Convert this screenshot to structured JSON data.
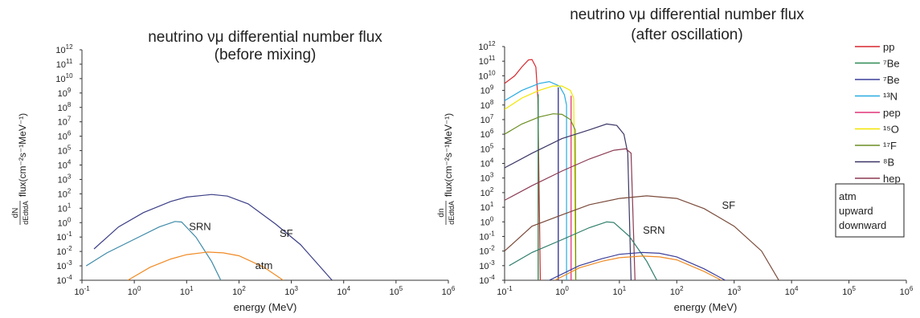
{
  "chart_data": [
    {
      "type": "line",
      "title_lines": [
        "neutrino νμ differential number flux",
        "(before mixing)"
      ],
      "xlabel": "energy (MeV)",
      "ylabel_frac_num": "dN",
      "ylabel_frac_den": "dEdtdA",
      "ylabel_unit": "flux(cm⁻²s⁻¹MeV⁻¹)",
      "x_scale": "log",
      "y_scale": "log",
      "xlim": [
        0.1,
        1000000
      ],
      "ylim": [
        0.0001,
        1000000000000
      ],
      "x_ticks": [
        {
          "v": 0.1,
          "base": "10",
          "exp": "-1"
        },
        {
          "v": 1,
          "base": "10",
          "exp": "0"
        },
        {
          "v": 10,
          "base": "10",
          "exp": "1"
        },
        {
          "v": 100,
          "base": "10",
          "exp": "2"
        },
        {
          "v": 1000,
          "base": "10",
          "exp": "3"
        },
        {
          "v": 10000,
          "base": "10",
          "exp": "4"
        },
        {
          "v": 100000,
          "base": "10",
          "exp": "5"
        },
        {
          "v": 1000000,
          "base": "10",
          "exp": "6"
        }
      ],
      "y_ticks": [
        {
          "v": 0.0001,
          "base": "10",
          "exp": "-4"
        },
        {
          "v": 0.001,
          "base": "10",
          "exp": "-3"
        },
        {
          "v": 0.01,
          "base": "10",
          "exp": "-2"
        },
        {
          "v": 0.1,
          "base": "10",
          "exp": "-1"
        },
        {
          "v": 1,
          "base": "10",
          "exp": "0"
        },
        {
          "v": 10,
          "base": "10",
          "exp": "1"
        },
        {
          "v": 100,
          "base": "10",
          "exp": "2"
        },
        {
          "v": 1000.0,
          "base": "10",
          "exp": "3"
        },
        {
          "v": 10000.0,
          "base": "10",
          "exp": "4"
        },
        {
          "v": 100000.0,
          "base": "10",
          "exp": "5"
        },
        {
          "v": 1000000.0,
          "base": "10",
          "exp": "6"
        },
        {
          "v": 10000000.0,
          "base": "10",
          "exp": "7"
        },
        {
          "v": 100000000.0,
          "base": "10",
          "exp": "8"
        },
        {
          "v": 1000000000.0,
          "base": "10",
          "exp": "9"
        },
        {
          "v": 10000000000.0,
          "base": "10",
          "exp": "10"
        },
        {
          "v": 100000000000.0,
          "base": "10",
          "exp": "11"
        },
        {
          "v": 1000000000000.0,
          "base": "10",
          "exp": "12"
        }
      ],
      "series": [
        {
          "name": "SF",
          "color": "#3b3e86",
          "points": [
            [
              0.17,
              0.015
            ],
            [
              0.5,
              0.5
            ],
            [
              1.5,
              5
            ],
            [
              5,
              30
            ],
            [
              10,
              60
            ],
            [
              30,
              90
            ],
            [
              60,
              70
            ],
            [
              150,
              20
            ],
            [
              500,
              0.8
            ],
            [
              1500,
              0.03
            ],
            [
              6000,
              0.0001
            ]
          ]
        },
        {
          "name": "SRN",
          "color": "#3e8aa8",
          "points": [
            [
              0.12,
              0.001
            ],
            [
              0.3,
              0.008
            ],
            [
              1,
              0.07
            ],
            [
              3,
              0.5
            ],
            [
              6,
              1.2
            ],
            [
              8,
              1.1
            ],
            [
              15,
              0.1
            ],
            [
              30,
              0.002
            ],
            [
              45,
              0.0001
            ]
          ]
        },
        {
          "name": "",
          "color": "#f08a24",
          "points": [
            [
              0.75,
              0.0001
            ],
            [
              2,
              0.0008
            ],
            [
              5,
              0.003
            ],
            [
              10,
              0.006
            ],
            [
              25,
              0.009
            ],
            [
              50,
              0.008
            ],
            [
              100,
              0.005
            ],
            [
              300,
              0.0008
            ],
            [
              700,
              0.0001
            ]
          ]
        }
      ],
      "annotations": [
        {
          "text": "SRN",
          "x": 18,
          "y": 0.3
        },
        {
          "text": "SF",
          "x": 800,
          "y": 0.1
        },
        {
          "text": "atm",
          "x": 300,
          "y": 0.0006
        }
      ]
    },
    {
      "type": "line",
      "title_lines": [
        "neutrino νμ differential number flux",
        "(after oscillation)"
      ],
      "xlabel": "energy (MeV)",
      "ylabel_frac_num": "dn",
      "ylabel_frac_den": "dEdtdA",
      "ylabel_unit": "flux(cm⁻²s⁻¹MeV⁻¹)",
      "x_scale": "log",
      "y_scale": "log",
      "xlim": [
        0.1,
        1000000
      ],
      "ylim": [
        0.0001,
        1000000000000
      ],
      "x_ticks": [
        {
          "v": 0.1,
          "base": "10",
          "exp": "-1"
        },
        {
          "v": 1,
          "base": "10",
          "exp": "0"
        },
        {
          "v": 10,
          "base": "10",
          "exp": "1"
        },
        {
          "v": 100,
          "base": "10",
          "exp": "2"
        },
        {
          "v": 1000,
          "base": "10",
          "exp": "3"
        },
        {
          "v": 10000,
          "base": "10",
          "exp": "4"
        },
        {
          "v": 100000,
          "base": "10",
          "exp": "5"
        },
        {
          "v": 1000000,
          "base": "10",
          "exp": "6"
        }
      ],
      "y_ticks": [
        {
          "v": 0.0001,
          "base": "10",
          "exp": "-4"
        },
        {
          "v": 0.001,
          "base": "10",
          "exp": "-3"
        },
        {
          "v": 0.01,
          "base": "10",
          "exp": "-2"
        },
        {
          "v": 0.1,
          "base": "10",
          "exp": "-1"
        },
        {
          "v": 1,
          "base": "10",
          "exp": "0"
        },
        {
          "v": 10,
          "base": "10",
          "exp": "1"
        },
        {
          "v": 100,
          "base": "10",
          "exp": "2"
        },
        {
          "v": 1000.0,
          "base": "10",
          "exp": "3"
        },
        {
          "v": 10000.0,
          "base": "10",
          "exp": "4"
        },
        {
          "v": 100000.0,
          "base": "10",
          "exp": "5"
        },
        {
          "v": 1000000.0,
          "base": "10",
          "exp": "6"
        },
        {
          "v": 10000000.0,
          "base": "10",
          "exp": "7"
        },
        {
          "v": 100000000.0,
          "base": "10",
          "exp": "8"
        },
        {
          "v": 1000000000.0,
          "base": "10",
          "exp": "9"
        },
        {
          "v": 10000000000.0,
          "base": "10",
          "exp": "10"
        },
        {
          "v": 100000000000.0,
          "base": "10",
          "exp": "11"
        },
        {
          "v": 1000000000000.0,
          "base": "10",
          "exp": "12"
        }
      ],
      "series": [
        {
          "name": "pp",
          "color": "#d9272e",
          "points": [
            [
              0.1,
              3000000000.0
            ],
            [
              0.15,
              10000000000.0
            ],
            [
              0.2,
              40000000000.0
            ],
            [
              0.26,
              120000000000.0
            ],
            [
              0.3,
              130000000000.0
            ],
            [
              0.35,
              40000000000.0
            ],
            [
              0.38,
              300000000.0
            ],
            [
              0.42,
              0.0001
            ]
          ]
        },
        {
          "name": "⁷Be",
          "color": "#2e8b57",
          "points": [
            [
              0.383,
              0.0001
            ],
            [
              0.383,
              500000000.0
            ],
            [
              0.386,
              500000000.0
            ],
            [
              0.386,
              0.0001
            ]
          ]
        },
        {
          "name": "⁷Be",
          "color": "#3b3e99",
          "points": [
            [
              0.86,
              0.0001
            ],
            [
              0.86,
              1500000000.0
            ],
            [
              0.865,
              1500000000.0
            ],
            [
              0.865,
              0.0001
            ]
          ]
        },
        {
          "name": "¹³N",
          "color": "#29abe2",
          "points": [
            [
              0.1,
              200000000.0
            ],
            [
              0.2,
              1000000000.0
            ],
            [
              0.4,
              3000000000.0
            ],
            [
              0.6,
              4000000000.0
            ],
            [
              0.9,
              2000000000.0
            ],
            [
              1.1,
              500000000.0
            ],
            [
              1.2,
              100000000.0
            ],
            [
              1.2,
              0.0001
            ]
          ]
        },
        {
          "name": "pep",
          "color": "#e2337a",
          "points": [
            [
              1.44,
              0.0001
            ],
            [
              1.44,
              400000000.0
            ],
            [
              1.445,
              400000000.0
            ],
            [
              1.445,
              0.0001
            ]
          ]
        },
        {
          "name": "¹⁵O",
          "color": "#f2e600",
          "points": [
            [
              0.1,
              50000000.0
            ],
            [
              0.2,
              300000000.0
            ],
            [
              0.4,
              1000000000.0
            ],
            [
              0.7,
              2000000000.0
            ],
            [
              1,
              2000000000.0
            ],
            [
              1.4,
              1000000000.0
            ],
            [
              1.6,
              300000000.0
            ],
            [
              1.73,
              0.0001
            ]
          ]
        },
        {
          "name": "¹⁷F",
          "color": "#6b8e23",
          "points": [
            [
              0.1,
              1000000.0
            ],
            [
              0.2,
              5000000.0
            ],
            [
              0.4,
              15000000.0
            ],
            [
              0.7,
              25000000.0
            ],
            [
              1,
              23000000.0
            ],
            [
              1.4,
              10000000.0
            ],
            [
              1.7,
              2000000.0
            ],
            [
              1.74,
              0.0001
            ]
          ]
        },
        {
          "name": "⁸B",
          "color": "#3b3766",
          "points": [
            [
              0.1,
              5000
            ],
            [
              0.3,
              50000.0
            ],
            [
              1,
              500000.0
            ],
            [
              3,
              2000000.0
            ],
            [
              6,
              5000000.0
            ],
            [
              9,
              4000000.0
            ],
            [
              12,
              1000000.0
            ],
            [
              14,
              50000.0
            ],
            [
              16,
              0.0001
            ]
          ]
        },
        {
          "name": "hep",
          "color": "#8b3a52",
          "points": [
            [
              0.1,
              30
            ],
            [
              0.3,
              300
            ],
            [
              1,
              3000
            ],
            [
              3,
              20000.0
            ],
            [
              8,
              80000.0
            ],
            [
              13,
              100000.0
            ],
            [
              16,
              50000.0
            ],
            [
              18.7,
              0.0001
            ]
          ]
        },
        {
          "name": "SF",
          "color": "#7a4a3a",
          "points": [
            [
              0.1,
              0.01
            ],
            [
              0.3,
              0.5
            ],
            [
              1,
              3
            ],
            [
              3,
              15
            ],
            [
              10,
              40
            ],
            [
              30,
              60
            ],
            [
              100,
              40
            ],
            [
              300,
              8
            ],
            [
              1000,
              0.5
            ],
            [
              3000,
              0.01
            ],
            [
              6000,
              0.0001
            ]
          ]
        },
        {
          "name": "SRN",
          "color": "#2e7d6b",
          "points": [
            [
              0.12,
              0.001
            ],
            [
              0.3,
              0.008
            ],
            [
              1,
              0.06
            ],
            [
              3,
              0.4
            ],
            [
              6,
              1
            ],
            [
              8,
              0.9
            ],
            [
              15,
              0.1
            ],
            [
              30,
              0.002
            ],
            [
              45,
              0.0001
            ]
          ]
        },
        {
          "name": "",
          "color": "#f08a24",
          "points": [
            [
              0.75,
              0.0001
            ],
            [
              2,
              0.0007
            ],
            [
              5,
              0.002
            ],
            [
              10,
              0.0035
            ],
            [
              25,
              0.0045
            ],
            [
              50,
              0.004
            ],
            [
              100,
              0.0025
            ],
            [
              300,
              0.0004
            ],
            [
              600,
              0.0001
            ]
          ]
        },
        {
          "name": "",
          "color": "#3b3e99",
          "points": [
            [
              0.6,
              0.0001
            ],
            [
              2,
              0.001
            ],
            [
              5,
              0.003
            ],
            [
              10,
              0.006
            ],
            [
              25,
              0.008
            ],
            [
              50,
              0.007
            ],
            [
              100,
              0.004
            ],
            [
              300,
              0.0006
            ],
            [
              700,
              0.0001
            ]
          ]
        }
      ],
      "annotations": [
        {
          "text": "SRN",
          "x": 40,
          "y": 0.15
        },
        {
          "text": "SF",
          "x": 800,
          "y": 8
        }
      ],
      "legend": [
        {
          "label": "pp",
          "color": "#d9272e"
        },
        {
          "label": "⁷Be",
          "color": "#2e8b57"
        },
        {
          "label": "⁷Be",
          "color": "#3b3e99"
        },
        {
          "label": "¹³N",
          "color": "#29abe2"
        },
        {
          "label": "pep",
          "color": "#e2337a"
        },
        {
          "label": "¹⁵O",
          "color": "#f2e600"
        },
        {
          "label": "¹⁷F",
          "color": "#6b8e23"
        },
        {
          "label": "⁸B",
          "color": "#3b3766"
        },
        {
          "label": "hep",
          "color": "#8b3a52"
        }
      ],
      "legend_placement": "right",
      "atm_box": [
        {
          "label": "atm",
          "color": "#222222"
        },
        {
          "label": "upward",
          "color": "#f08a24"
        },
        {
          "label": "downward",
          "color": "#3b3e99"
        }
      ]
    }
  ]
}
